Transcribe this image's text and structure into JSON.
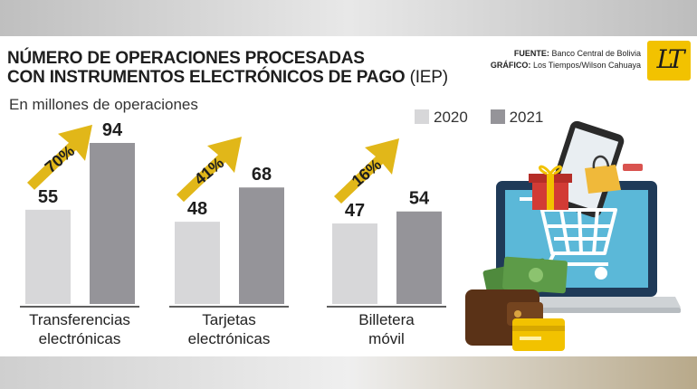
{
  "title": {
    "line1": "NÚMERO DE OPERACIONES PROCESADAS",
    "line2": "CON INSTRUMENTOS ELECTRÓNICOS DE PAGO",
    "suffix": "(IEP)"
  },
  "credits": {
    "source_label": "FUENTE:",
    "source_value": "Banco Central de Bolivia",
    "graphic_label": "GRÁFICO:",
    "graphic_value": "Los Tiempos/Wilson Cahuaya"
  },
  "logo_text": "LT",
  "colors": {
    "2020": "#d7d7d9",
    "2021": "#959499",
    "arrow": "#e1b719",
    "accent": "#1e1e1e"
  },
  "illustration": [
    "laptop-icon",
    "shopping-cart-icon",
    "smartphone-icon",
    "gift-icon",
    "shopping-bag-icon",
    "wallet-icon",
    "banknotes-icon",
    "credit-card-icon"
  ],
  "chart_data": {
    "type": "bar",
    "title": "NÚMERO DE OPERACIONES PROCESADAS CON INSTRUMENTOS ELECTRÓNICOS DE PAGO (IEP)",
    "ylabel": "En millones de operaciones",
    "categories": [
      {
        "line1": "Transferencias",
        "line2": "electrónicas"
      },
      {
        "line1": "Tarjetas",
        "line2": "electrónicas"
      },
      {
        "line1": "Billetera",
        "line2": "móvil"
      }
    ],
    "series": [
      {
        "name": "2020",
        "values": [
          55,
          48,
          47
        ]
      },
      {
        "name": "2021",
        "values": [
          94,
          68,
          54
        ]
      }
    ],
    "growth_labels": [
      "70%",
      "41%",
      "16%"
    ],
    "ylim": [
      0,
      94
    ],
    "grid": false,
    "legend": "top-right"
  }
}
